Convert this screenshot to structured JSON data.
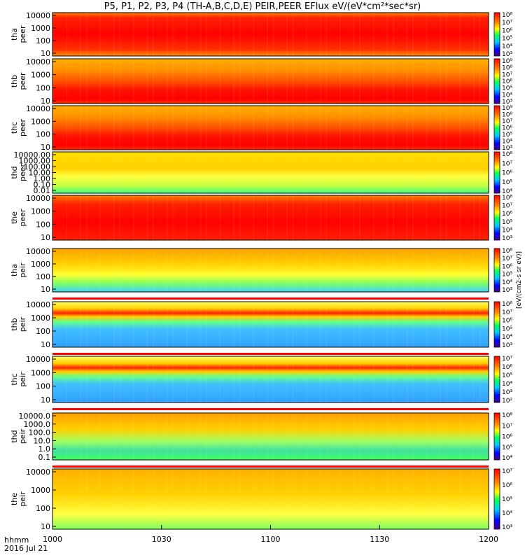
{
  "chart_data": {
    "type": "heatmap",
    "title": "P5, P1, P2, P3, P4 (TH-A,B,C,D,E) PEIR,PEER EFlux eV/(eV*cm²*sec*sr)",
    "x_axis": {
      "label_line1": "hhmm",
      "label_line2": "2016 Jul 21",
      "range": [
        1000,
        1200
      ],
      "ticks": [
        "1000",
        "1030",
        "1100",
        "1130",
        "1200"
      ]
    },
    "colorbar_label": "[eV/(cm2-s sr eV)]",
    "panels": [
      {
        "probe": "tha",
        "species": "peer",
        "y_ticks": [
          "10000",
          "1000",
          "100",
          "10"
        ],
        "cb_ticks": [
          "10⁸",
          "10⁷",
          "10⁶",
          "10⁵",
          "10⁴",
          "10³"
        ],
        "style": "peer_a"
      },
      {
        "probe": "thb",
        "species": "peer",
        "y_ticks": [
          "10000",
          "1000",
          "100",
          "10"
        ],
        "cb_ticks": [
          "10⁹",
          "10⁸",
          "10⁷",
          "10⁶",
          "10⁵",
          "10⁴",
          "10³"
        ],
        "style": "peer_bc"
      },
      {
        "probe": "thc",
        "species": "peer",
        "y_ticks": [
          "10000",
          "1000",
          "100",
          "10"
        ],
        "cb_ticks": [
          "10⁹",
          "10⁸",
          "10⁷",
          "10⁶",
          "10⁵",
          "10⁴",
          "10³"
        ],
        "style": "peer_bc"
      },
      {
        "probe": "thd",
        "species": "peer",
        "y_ticks": [
          "10000.00",
          "1000.00",
          "100.00",
          "10.00",
          "1.00",
          "0.10",
          "0.01"
        ],
        "cb_ticks": [
          "10⁸",
          "10⁷",
          "10⁶",
          "10⁵",
          "10⁴"
        ],
        "style": "peer_d"
      },
      {
        "probe": "the",
        "species": "peer",
        "y_ticks": [
          "10000",
          "1000",
          "100",
          "10"
        ],
        "cb_ticks": [
          "10⁸",
          "10⁷",
          "10⁶",
          "10⁵",
          "10⁴",
          "10³"
        ],
        "style": "peer_e"
      },
      {
        "probe": "tha",
        "species": "peir",
        "y_ticks": [
          "10000",
          "1000",
          "100",
          "10"
        ],
        "cb_ticks": [
          "10⁸",
          "10⁷",
          "10⁶",
          "10⁵",
          "10⁴",
          "10³"
        ],
        "style": "peir_a"
      },
      {
        "probe": "thb",
        "species": "peir",
        "y_ticks": [
          "10000",
          "1000",
          "100",
          "10"
        ],
        "cb_ticks": [
          "10⁸",
          "10⁷",
          "10⁶",
          "10⁵",
          "10⁴",
          "10³"
        ],
        "style": "peir_bc"
      },
      {
        "probe": "thc",
        "species": "peir",
        "y_ticks": [
          "10000",
          "1000",
          "100",
          "10"
        ],
        "cb_ticks": [
          "10⁷",
          "10⁶",
          "10⁵",
          "10⁴",
          "10³",
          "10²"
        ],
        "style": "peir_bc"
      },
      {
        "probe": "thd",
        "species": "peir",
        "y_ticks": [
          "10000.0",
          "1000.0",
          "100.0",
          "10.0",
          "1.0",
          "0.1"
        ],
        "cb_ticks": [
          "10⁸",
          "10⁷",
          "10⁶",
          "10⁵",
          "10⁴"
        ],
        "style": "peir_d"
      },
      {
        "probe": "the",
        "species": "peir",
        "y_ticks": [
          "10000",
          "1000",
          "100",
          "10"
        ],
        "cb_ticks": [
          "10⁷",
          "10⁶",
          "10⁵",
          "10⁴",
          "10³"
        ],
        "style": "peir_e"
      }
    ]
  }
}
